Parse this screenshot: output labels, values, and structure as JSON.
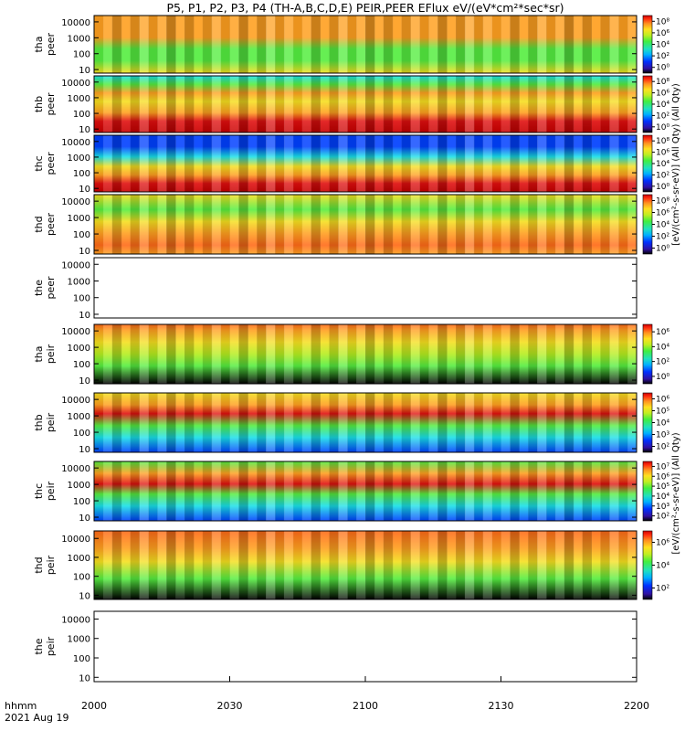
{
  "title": "P5, P1, P2, P3, P4 (TH-A,B,C,D,E) PEIR,PEER EFlux eV/(eV*cm²*sec*sr)",
  "time_axis": {
    "row_label": "hhmm",
    "date_label": "2021 Aug 19",
    "ticks": [
      "2000",
      "2030",
      "2100",
      "2130",
      "2200"
    ]
  },
  "y_ticks": [
    "10",
    "100",
    "1000",
    "10000"
  ],
  "colorbar_label_top": "[eV/(cm²-s-sr-eV)] (All Qty) (All Qty)",
  "colorbar_label_bottom": "[eV/(cm²-s-sr-eV)] (All Qty)",
  "colors": {
    "black": "#000000",
    "blue": "#0040ff",
    "cyan": "#19e0e8",
    "green": "#55ee40",
    "yellowgreen": "#b5ee20",
    "yellow": "#f5e020",
    "orange": "#ffa020",
    "orangered": "#ff6a18",
    "red": "#e01010",
    "darkred": "#c80000"
  },
  "chart_data": {
    "type": "heatmap",
    "x_range": [
      "2000",
      "2200"
    ],
    "y_scale": "log",
    "ylim": [
      6,
      25000
    ],
    "panels": [
      {
        "label_top": "tha",
        "label_bottom": "peer",
        "colorbar": [
          "10⁰",
          "10²",
          "10⁴",
          "10⁶",
          "10⁸"
        ],
        "bands": [
          [
            "yellow",
            0
          ],
          [
            "green",
            0.22
          ],
          [
            "green",
            0.42
          ],
          [
            "orange",
            0.62
          ],
          [
            "orange",
            0.82
          ],
          [
            "orange",
            1
          ]
        ]
      },
      {
        "label_top": "thb",
        "label_bottom": "peer",
        "colorbar": [
          "10⁰",
          "10²",
          "10⁴",
          "10⁶",
          "10⁸"
        ],
        "bands": [
          [
            "darkred",
            0
          ],
          [
            "red",
            0.2
          ],
          [
            "orange",
            0.35
          ],
          [
            "yellow",
            0.55
          ],
          [
            "orange",
            0.7
          ],
          [
            "green",
            0.85
          ],
          [
            "cyan",
            1
          ]
        ]
      },
      {
        "label_top": "thc",
        "label_bottom": "peer",
        "colorbar": [
          "10⁰",
          "10²",
          "10⁴",
          "10⁶",
          "10⁸"
        ],
        "bands": [
          [
            "darkred",
            0
          ],
          [
            "red",
            0.15
          ],
          [
            "orange",
            0.3
          ],
          [
            "yellow",
            0.45
          ],
          [
            "cyan",
            0.62
          ],
          [
            "blue",
            0.8
          ],
          [
            "blue",
            1
          ]
        ]
      },
      {
        "label_top": "thd",
        "label_bottom": "peer",
        "colorbar": [
          "10⁰",
          "10²",
          "10⁴",
          "10⁶",
          "10⁸"
        ],
        "bands": [
          [
            "orange",
            0
          ],
          [
            "orangered",
            0.15
          ],
          [
            "orange",
            0.35
          ],
          [
            "yellow",
            0.55
          ],
          [
            "green",
            0.75
          ],
          [
            "yellow",
            1
          ]
        ]
      },
      {
        "label_top": "the",
        "label_bottom": "peer",
        "colorbar": [],
        "bands": []
      },
      {
        "label_top": "tha",
        "label_bottom": "peir",
        "colorbar": [
          "10⁰",
          "10²",
          "10⁴",
          "10⁶"
        ],
        "bands": [
          [
            "black",
            0
          ],
          [
            "green",
            0.3
          ],
          [
            "yellowgreen",
            0.5
          ],
          [
            "yellow",
            0.7
          ],
          [
            "orange",
            0.9
          ],
          [
            "orangered",
            1
          ]
        ]
      },
      {
        "label_top": "thb",
        "label_bottom": "peir",
        "colorbar": [
          "10²",
          "10³",
          "10⁴",
          "10⁵",
          "10⁶"
        ],
        "bands": [
          [
            "blue",
            0
          ],
          [
            "cyan",
            0.25
          ],
          [
            "green",
            0.45
          ],
          [
            "red",
            0.65
          ],
          [
            "orange",
            0.8
          ],
          [
            "yellow",
            1
          ]
        ]
      },
      {
        "label_top": "thc",
        "label_bottom": "peir",
        "colorbar": [
          "10²",
          "10³",
          "10⁴",
          "10⁵",
          "10⁶",
          "10⁷"
        ],
        "bands": [
          [
            "blue",
            0
          ],
          [
            "cyan",
            0.25
          ],
          [
            "green",
            0.45
          ],
          [
            "red",
            0.62
          ],
          [
            "orange",
            0.8
          ],
          [
            "green",
            1
          ]
        ]
      },
      {
        "label_top": "thd",
        "label_bottom": "peir",
        "colorbar": [
          "10²",
          "10⁴",
          "10⁶"
        ],
        "bands": [
          [
            "black",
            0
          ],
          [
            "green",
            0.3
          ],
          [
            "yellow",
            0.55
          ],
          [
            "orange",
            0.75
          ],
          [
            "orangered",
            1
          ]
        ]
      },
      {
        "label_top": "the",
        "label_bottom": "peir",
        "colorbar": [],
        "bands": []
      }
    ]
  }
}
